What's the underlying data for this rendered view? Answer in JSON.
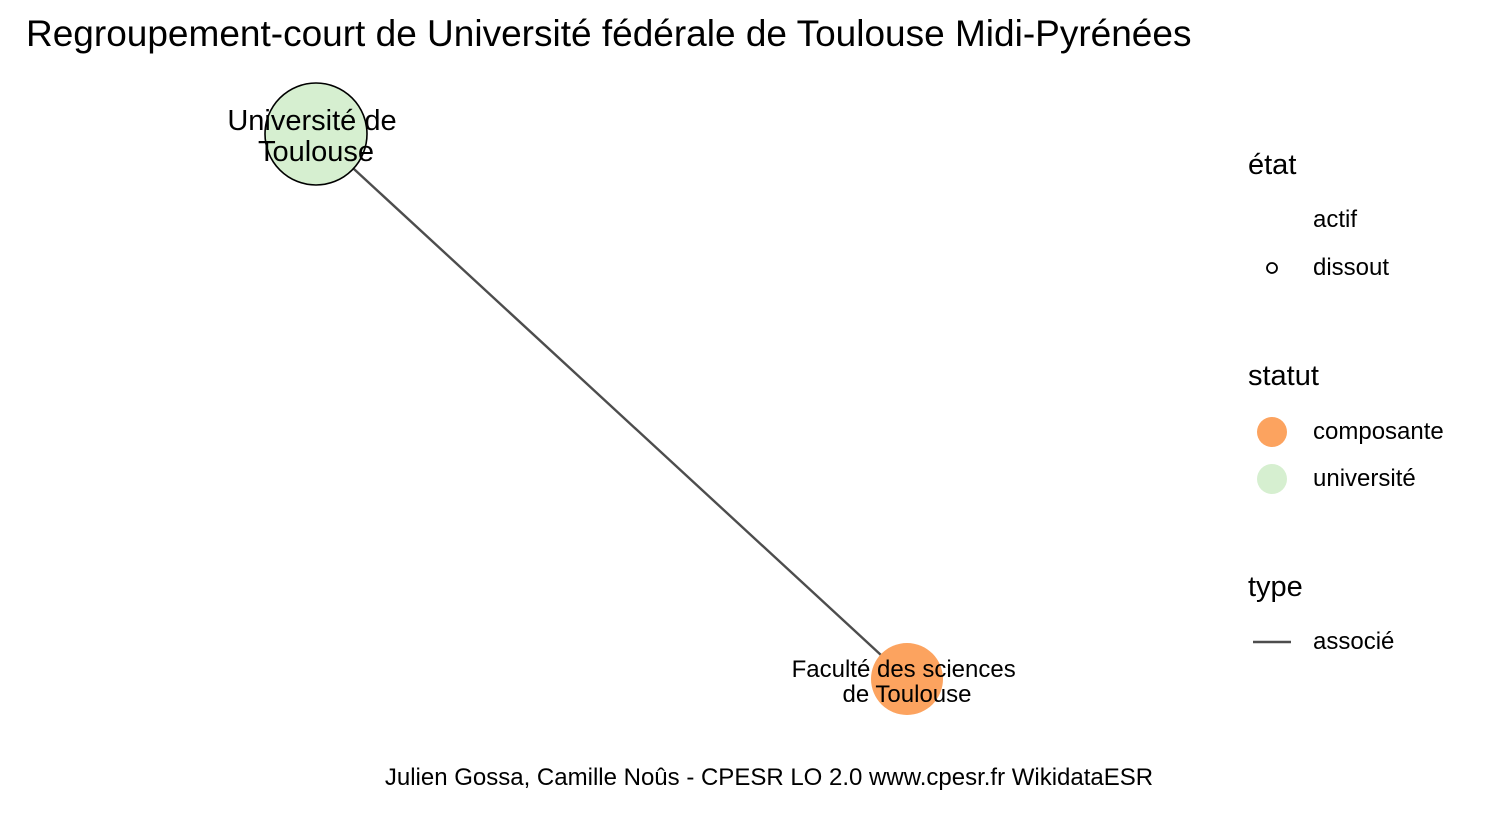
{
  "title": "Regroupement-court de Université fédérale de Toulouse Midi-Pyrénées",
  "caption": "Julien Gossa, Camille Noûs - CPESR LO 2.0 www.cpesr.fr WikidataESR",
  "colors": {
    "universite": "#d6efd0",
    "composante": "#fca35f",
    "edge": "#4d4d4d",
    "outline": "#000000"
  },
  "nodes": [
    {
      "id": "universite-de-toulouse",
      "label_lines": [
        "Université de",
        "Toulouse"
      ],
      "statut": "université",
      "etat": "dissout"
    },
    {
      "id": "faculte-des-sciences",
      "label_lines": [
        "Faculté des sciences",
        "de Toulouse"
      ],
      "statut": "composante",
      "etat": "actif"
    }
  ],
  "edges": [
    {
      "from": "universite-de-toulouse",
      "to": "faculte-des-sciences",
      "type": "associé"
    }
  ],
  "legend": {
    "etat": {
      "title": "état",
      "items": [
        "actif",
        "dissout"
      ]
    },
    "statut": {
      "title": "statut",
      "items": [
        "composante",
        "université"
      ]
    },
    "type": {
      "title": "type",
      "items": [
        "associé"
      ]
    }
  }
}
